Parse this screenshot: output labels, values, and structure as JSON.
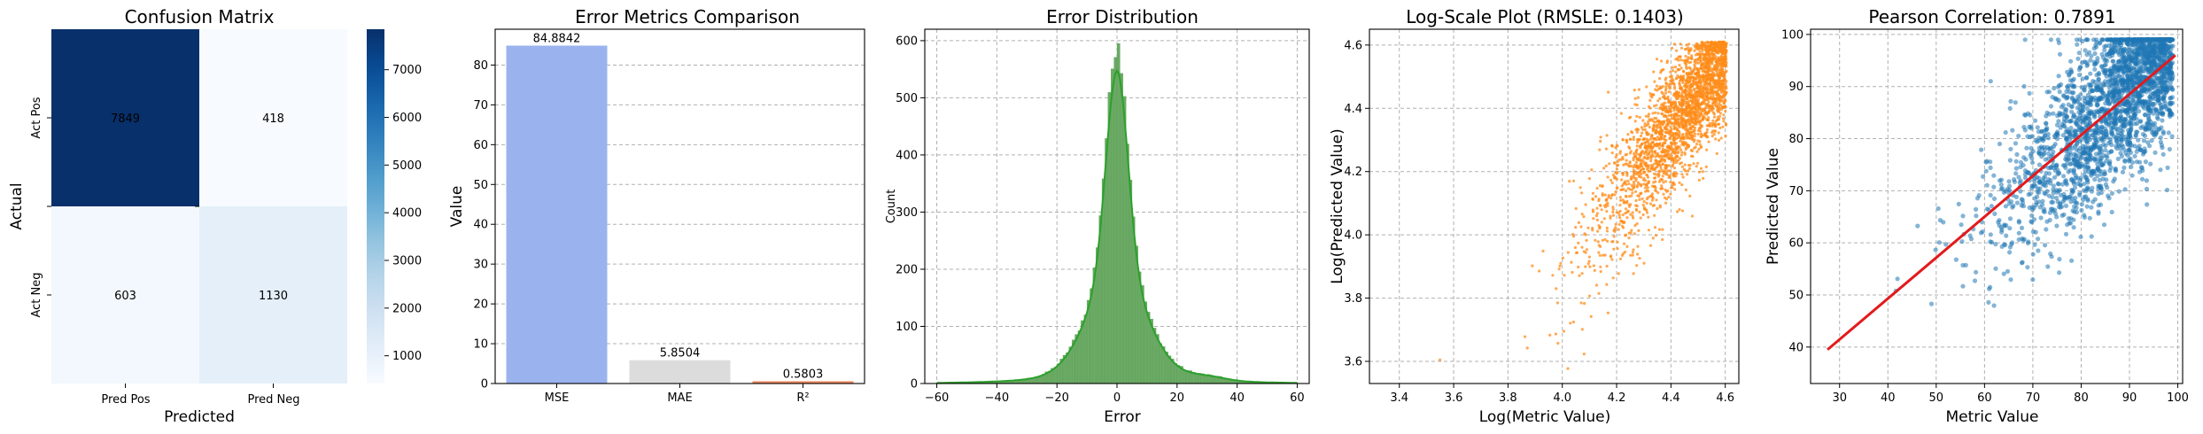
{
  "panels": {
    "confusion": {
      "title": "Confusion Matrix",
      "xlabel": "Predicted",
      "ylabel": "Actual",
      "x_ticks": [
        "Pred Pos",
        "Pred Neg"
      ],
      "y_ticks": [
        "Act Pos",
        "Act Neg"
      ],
      "colorbar_ticks": [
        "1000",
        "2000",
        "3000",
        "4000",
        "5000",
        "6000",
        "7000"
      ]
    },
    "metrics": {
      "title": "Error Metrics Comparison",
      "ylabel": "Value",
      "y_ticks": [
        "0",
        "10",
        "20",
        "30",
        "40",
        "50",
        "60",
        "70",
        "80"
      ]
    },
    "distribution": {
      "title": "Error Distribution",
      "xlabel": "Error",
      "ylabel": "Count",
      "x_ticks": [
        "−60",
        "−40",
        "−20",
        "0",
        "20",
        "40",
        "60"
      ],
      "y_ticks": [
        "0",
        "100",
        "200",
        "300",
        "400",
        "500",
        "600"
      ]
    },
    "logscale": {
      "title": "Log-Scale Plot (RMSLE: 0.1403)",
      "xlabel": "Log(Metric Value)",
      "ylabel": "Log(Predicted Value)",
      "x_ticks": [
        "3.4",
        "3.6",
        "3.8",
        "4.0",
        "4.2",
        "4.4",
        "4.6"
      ],
      "y_ticks": [
        "3.6",
        "3.8",
        "4.0",
        "4.2",
        "4.4",
        "4.6"
      ]
    },
    "pearson": {
      "title": "Pearson Correlation: 0.7891",
      "xlabel": "Metric Value",
      "ylabel": "Predicted Value",
      "x_ticks": [
        "30",
        "40",
        "50",
        "60",
        "70",
        "80",
        "90",
        "100"
      ],
      "y_ticks": [
        "40",
        "50",
        "60",
        "70",
        "80",
        "90",
        "100"
      ]
    }
  },
  "colors": {
    "heat_low": "#f7fbff",
    "heat_high": "#08306b",
    "bar_mse": "#9ab3ef",
    "bar_mae": "#dcdcdc",
    "bar_r2": "#ef8b62",
    "hist": "#6aaa64",
    "kde": "#2ca02c",
    "scatter_orange": "#ff8c1a",
    "scatter_blue": "#1f77b4",
    "fit_line": "#e31a1c"
  },
  "chart_data": [
    {
      "type": "heatmap",
      "title": "Confusion Matrix",
      "xlabel": "Predicted",
      "ylabel": "Actual",
      "x_categories": [
        "Pred Pos",
        "Pred Neg"
      ],
      "y_categories": [
        "Act Pos",
        "Act Neg"
      ],
      "values": [
        [
          7849,
          418
        ],
        [
          603,
          1130
        ]
      ],
      "colorbar_range": [
        418,
        7849
      ],
      "colormap": "Blues"
    },
    {
      "type": "bar",
      "title": "Error Metrics Comparison",
      "ylabel": "Value",
      "categories": [
        "MSE",
        "MAE",
        "R²"
      ],
      "values": [
        84.8842,
        5.8504,
        0.5803
      ],
      "labels": [
        "84.8842",
        "5.8504",
        "0.5803"
      ],
      "ylim": [
        0,
        89
      ],
      "grid": "y"
    },
    {
      "type": "bar",
      "title": "Error Distribution",
      "xlabel": "Error",
      "ylabel": "Count",
      "xlim": [
        -64,
        64
      ],
      "ylim": [
        0,
        620
      ],
      "grid": true,
      "bin_range": [
        -60,
        60
      ],
      "bin_width": 1,
      "peak_count": 595,
      "peak_at": 0,
      "kde": true
    },
    {
      "type": "scatter",
      "title": "Log-Scale Plot (RMSLE: 0.1403)",
      "xlabel": "Log(Metric Value)",
      "ylabel": "Log(Predicted Value)",
      "xlim": [
        3.29,
        4.65
      ],
      "ylim": [
        3.53,
        4.65
      ],
      "x_range_points": [
        3.33,
        4.6
      ],
      "y_range_points": [
        3.56,
        4.61
      ],
      "rmsle": 0.1403,
      "grid": true
    },
    {
      "type": "scatter",
      "title": "Pearson Correlation: 0.7891",
      "xlabel": "Metric Value",
      "ylabel": "Predicted Value",
      "xlim": [
        24,
        101
      ],
      "ylim": [
        33,
        101
      ],
      "pearson_r": 0.7891,
      "fit_line": {
        "x": [
          27.5,
          99.5
        ],
        "y": [
          39.5,
          96
        ]
      },
      "grid": true
    }
  ]
}
